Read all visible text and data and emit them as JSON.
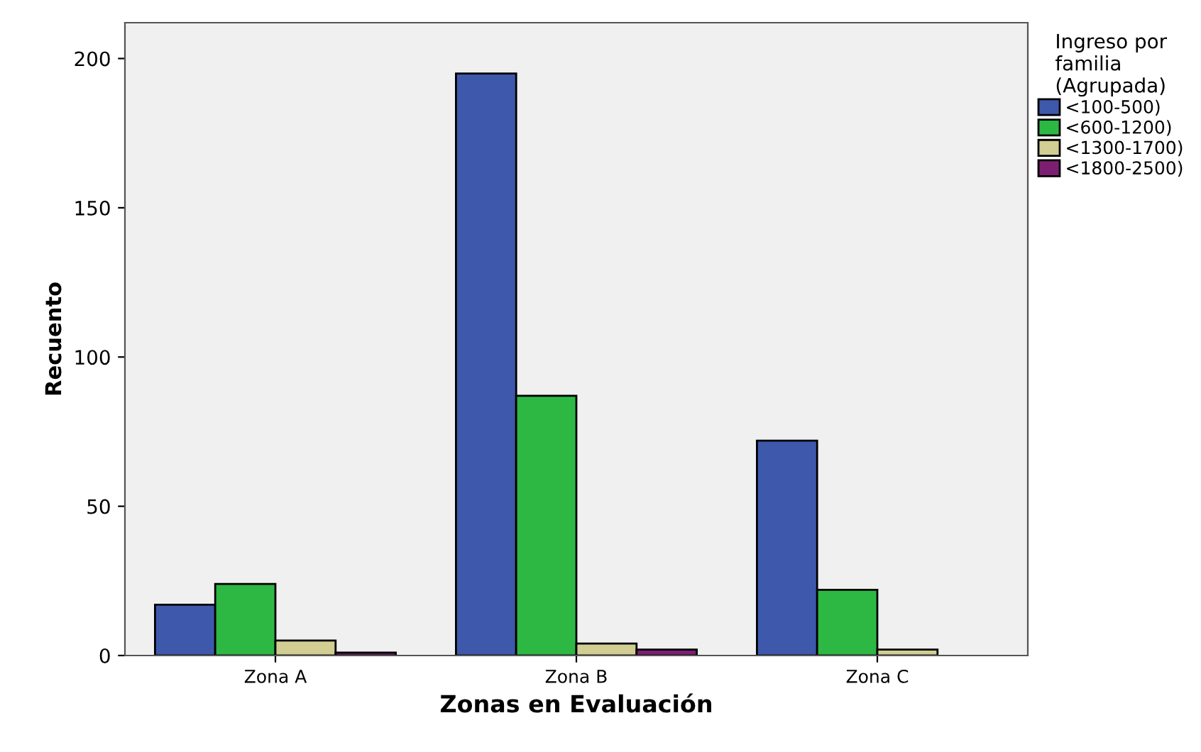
{
  "chart_data": {
    "type": "bar",
    "xlabel": "Zonas en Evaluación",
    "ylabel": "Recuento",
    "legend_title": "Ingreso por\nfamilia\n(Agrupada)",
    "categories": [
      "Zona A",
      "Zona B",
      "Zona C"
    ],
    "series": [
      {
        "name": "<100-500)",
        "color": "#3e58ac",
        "values": [
          17,
          195,
          72
        ]
      },
      {
        "name": "<600-1200)",
        "color": "#2db844",
        "values": [
          24,
          87,
          22
        ]
      },
      {
        "name": "<1300-1700)",
        "color": "#d2cd93",
        "values": [
          5,
          4,
          2
        ]
      },
      {
        "name": "<1800-2500)",
        "color": "#7c1f72",
        "values": [
          1,
          2,
          null
        ]
      }
    ],
    "ylim": [
      0,
      212
    ],
    "yticks": [
      0,
      50,
      100,
      150,
      200
    ],
    "grid": false,
    "legend": "top right"
  }
}
